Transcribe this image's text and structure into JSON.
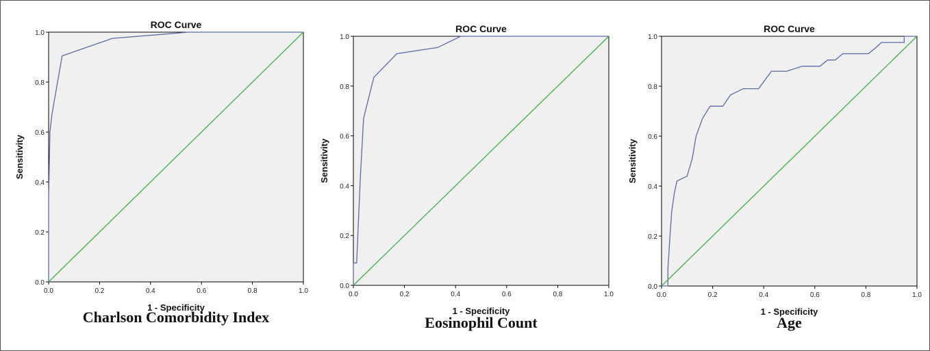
{
  "chart_data": [
    {
      "type": "line",
      "title": "ROC Curve",
      "caption": "Charlson Comorbidity Index",
      "xlabel": "1 - Specificity",
      "ylabel": "Sensitivity",
      "xlim": [
        0,
        1
      ],
      "ylim": [
        0,
        1
      ],
      "xticks": [
        "0.0",
        "0.2",
        "0.4",
        "0.6",
        "0.8",
        "1.0"
      ],
      "yticks": [
        "0.0",
        "0.2",
        "0.4",
        "0.6",
        "0.8",
        "1.0"
      ],
      "grid": false,
      "series": [
        {
          "color": "#5a6aa8",
          "x": [
            0,
            0,
            0.005,
            0.013,
            0.053,
            0.25,
            0.55,
            1.0
          ],
          "y": [
            0,
            0.33,
            0.6,
            0.67,
            0.905,
            0.975,
            1.0,
            1.0
          ]
        },
        {
          "color": "#3fae48",
          "x": [
            0,
            1
          ],
          "y": [
            0,
            1
          ]
        }
      ]
    },
    {
      "type": "line",
      "title": "ROC Curve",
      "caption": "Eosinophil Count",
      "xlabel": "1 - Specificity",
      "ylabel": "Sensitivity",
      "xlim": [
        0,
        1
      ],
      "ylim": [
        0,
        1
      ],
      "xticks": [
        "0.0",
        "0.2",
        "0.4",
        "0.6",
        "0.8",
        "1.0"
      ],
      "yticks": [
        "0.0",
        "0.2",
        "0.4",
        "0.6",
        "0.8",
        "1.0"
      ],
      "grid": false,
      "series": [
        {
          "color": "#5a6aa8",
          "x": [
            0,
            0,
            0.013,
            0.027,
            0.04,
            0.08,
            0.17,
            0.33,
            0.42,
            1.0
          ],
          "y": [
            0,
            0.09,
            0.09,
            0.43,
            0.67,
            0.835,
            0.93,
            0.955,
            1.0,
            1.0
          ]
        },
        {
          "color": "#3fae48",
          "x": [
            0,
            1
          ],
          "y": [
            0,
            1
          ]
        }
      ]
    },
    {
      "type": "line",
      "title": "ROC Curve",
      "caption": "Age",
      "xlabel": "1 - Specificity",
      "ylabel": "Sensitivity",
      "xlim": [
        0,
        1
      ],
      "ylim": [
        0,
        1
      ],
      "xticks": [
        "0.0",
        "0.2",
        "0.4",
        "0.6",
        "0.8",
        "1.0"
      ],
      "yticks": [
        "0.0",
        "0.2",
        "0.4",
        "0.6",
        "0.8",
        "1.0"
      ],
      "grid": false,
      "series": [
        {
          "color": "#5a6aa8",
          "x": [
            0,
            0.025,
            0.025,
            0.033,
            0.04,
            0.05,
            0.06,
            0.1,
            0.12,
            0.135,
            0.16,
            0.19,
            0.24,
            0.27,
            0.32,
            0.38,
            0.43,
            0.49,
            0.55,
            0.62,
            0.65,
            0.68,
            0.71,
            0.76,
            0.81,
            0.84,
            0.86,
            0.91,
            0.95,
            0.95,
            1.0
          ],
          "y": [
            0,
            0,
            0.07,
            0.2,
            0.3,
            0.37,
            0.42,
            0.44,
            0.51,
            0.6,
            0.67,
            0.72,
            0.72,
            0.765,
            0.79,
            0.79,
            0.86,
            0.86,
            0.88,
            0.88,
            0.905,
            0.905,
            0.93,
            0.93,
            0.93,
            0.955,
            0.975,
            0.975,
            0.975,
            1.0,
            1.0
          ]
        },
        {
          "color": "#3fae48",
          "x": [
            0,
            1
          ],
          "y": [
            0,
            1
          ]
        }
      ]
    }
  ]
}
